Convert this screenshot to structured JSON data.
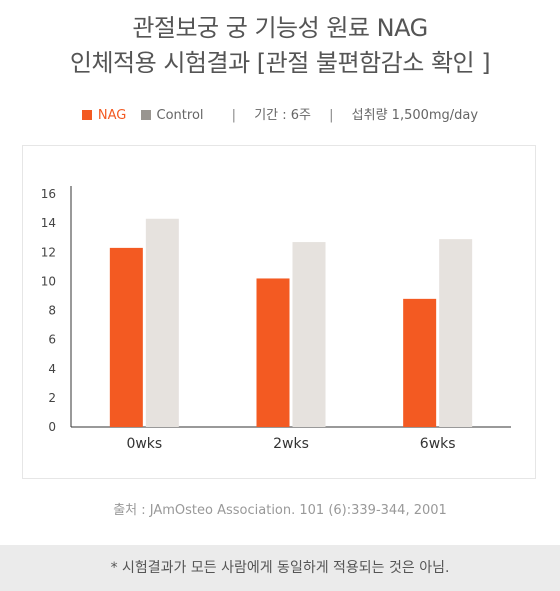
{
  "title_line1": "관절보궁 궁 기능성 원료 NAG",
  "title_line2": "인체적용 시험결과 [관절 불편함감소 확인 ]",
  "legend": {
    "period": "기간 : 6주",
    "intake": "섭취량 1,500mg/day",
    "separator": "|"
  },
  "source": "출처 : JAmOsteo Association. 101 (6):339-344, 2001",
  "footer_note": "* 시험결과가 모든 사람에게 동일하게 적용되는 것은 아님.",
  "colors": {
    "nag": "#f35a22",
    "control": "#e6e2de",
    "control_legend": "#999590"
  },
  "chart_data": {
    "type": "bar",
    "categories": [
      "0wks",
      "2wks",
      "6wks"
    ],
    "series": [
      {
        "name": "NAG",
        "values": [
          12.3,
          10.2,
          8.8
        ]
      },
      {
        "name": "Control",
        "values": [
          14.3,
          12.7,
          12.9
        ]
      }
    ],
    "ylim": [
      0,
      16
    ],
    "yticks": [
      0,
      2,
      4,
      6,
      8,
      10,
      12,
      14,
      16
    ],
    "legend_position": "top",
    "grid": false
  }
}
